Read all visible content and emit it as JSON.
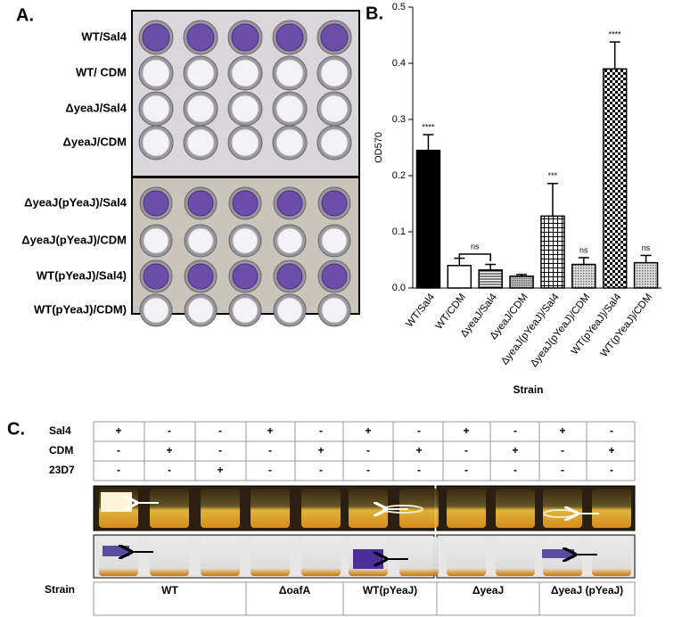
{
  "panels": {
    "a": "A.",
    "b": "B.",
    "c": "C."
  },
  "panel_a": {
    "rows": [
      "WT/Sal4",
      "WT/ CDM",
      "ΔyeaJ/Sal4",
      "ΔyeaJ/CDM",
      "ΔyeaJ(pYeaJ)/Sal4",
      "ΔyeaJ(pYeaJ)/CDM",
      "WT(pYeaJ)/Sal4)",
      "WT(pYeaJ)/CDM)"
    ]
  },
  "chart_data": {
    "type": "bar",
    "ylabel": "OD570",
    "xlabel": "Strain",
    "categories": [
      "WT/Sal4",
      "WT/CDM",
      "ΔyeaJ/Sal4",
      "ΔyeaJ/CDM",
      "ΔyeaJ(pYeaJ)/Sal4",
      "ΔyeaJ(pYeaJ)/CDM",
      "WT(pYeaJ)/Sal4",
      "WT(pYeaJ)/CDM"
    ],
    "values": [
      0.245,
      0.04,
      0.032,
      0.021,
      0.128,
      0.042,
      0.39,
      0.045
    ],
    "errors": [
      0.028,
      0.013,
      0.01,
      0.003,
      0.058,
      0.012,
      0.048,
      0.013
    ],
    "annotations": [
      "****",
      null,
      null,
      null,
      "***",
      "ns",
      "****",
      "ns"
    ],
    "bracket_label": "ns",
    "patterns": [
      "solid",
      "none",
      "hlines",
      "dense",
      "grid",
      "dots",
      "checker",
      "dots"
    ],
    "ylim": [
      0,
      0.5
    ],
    "yticks": [
      {
        "value": 0,
        "label": "0.0"
      },
      0.1,
      0.2,
      0.3,
      0.4,
      0.5
    ]
  },
  "panel_c": {
    "conditions": [
      {
        "name": "Sal4",
        "cells": [
          "+",
          "-",
          "-",
          "+",
          "-",
          "+",
          "-",
          "+",
          "-",
          "+",
          "-"
        ]
      },
      {
        "name": "CDM",
        "cells": [
          "-",
          "+",
          "-",
          "-",
          "+",
          "-",
          "+",
          "-",
          "+",
          "-",
          "+"
        ]
      },
      {
        "name": "23D7",
        "cells": [
          "-",
          "-",
          "+",
          "-",
          "-",
          "-",
          "-",
          "-",
          "-",
          "-",
          "-"
        ]
      }
    ],
    "strain_header": "Strain",
    "strains": [
      "WT",
      "ΔoafA",
      "WT(pYeaJ)",
      "ΔyeaJ",
      "ΔyeaJ (pYeaJ)"
    ]
  }
}
